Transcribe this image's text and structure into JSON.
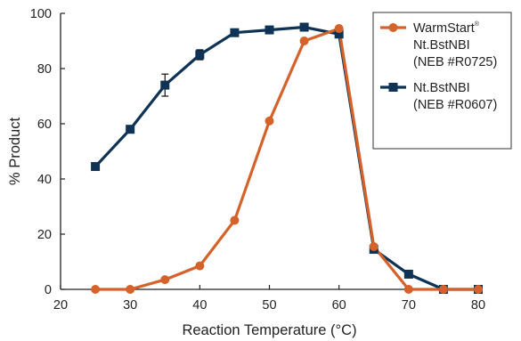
{
  "chart_data": {
    "type": "line",
    "xlabel": "Reaction Temperature (°C)",
    "ylabel": "% Product",
    "xlim": [
      20,
      80
    ],
    "ylim": [
      0,
      100
    ],
    "x_ticks": [
      "20",
      "30",
      "40",
      "50",
      "60",
      "70",
      "80"
    ],
    "y_ticks": [
      "0",
      "20",
      "40",
      "60",
      "80",
      "100"
    ],
    "grid": false,
    "legend_position": "top-right",
    "series": [
      {
        "key": "warmstart",
        "legend_lines": [
          "WarmStart®",
          "Nt.BstNBI",
          "(NEB #R0725)"
        ],
        "color": "#d4622a",
        "marker": "circle",
        "x": [
          25,
          30,
          35,
          40,
          45,
          50,
          55,
          60,
          65,
          70,
          75,
          80
        ],
        "y": [
          0,
          0,
          3.5,
          8.5,
          25,
          61,
          90,
          94.5,
          15.5,
          0,
          0,
          0
        ]
      },
      {
        "key": "bstnbi",
        "legend_lines": [
          "Nt.BstNBI",
          "(NEB #R0607)"
        ],
        "color": "#0e3355",
        "marker": "square",
        "x": [
          25,
          30,
          35,
          40,
          45,
          50,
          55,
          60,
          65,
          70,
          75,
          80
        ],
        "y": [
          44.5,
          58,
          74,
          85,
          93,
          94,
          95,
          92.5,
          14.5,
          5.5,
          0,
          0
        ],
        "error": [
          0,
          0,
          4,
          1.8,
          0,
          0,
          0.8,
          1.2,
          0,
          0,
          0,
          0
        ]
      }
    ]
  }
}
